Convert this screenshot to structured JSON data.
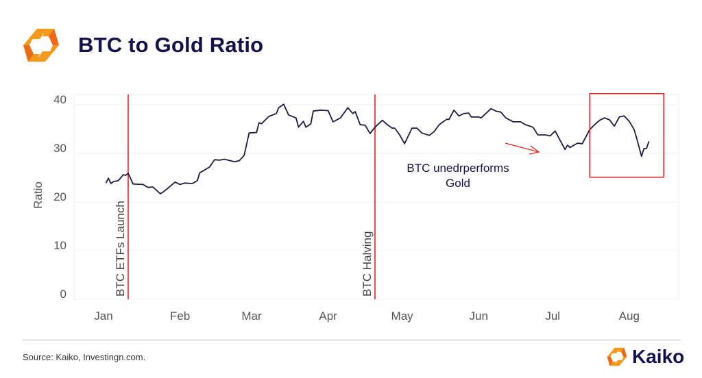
{
  "header": {
    "title": "BTC to Gold Ratio",
    "logo": "kaiko-hex-logo"
  },
  "footer": {
    "source": "Source: Kaiko, Investingn.com.",
    "brand": "Kaiko"
  },
  "colors": {
    "line": "#1b1b3f",
    "event": "#e02424",
    "title": "#13134a",
    "logo_orange": "#f39a1e",
    "logo_dark_orange": "#ec6a1a"
  },
  "chart_data": {
    "type": "line",
    "title": "BTC to Gold Ratio",
    "xlabel": "",
    "ylabel": "Ratio",
    "ylim": [
      0,
      42
    ],
    "xlim": [
      "2024-01-01",
      "2024-08-15"
    ],
    "yticks": [
      0,
      10,
      20,
      30,
      40
    ],
    "xticks": [
      {
        "date": "2024-01-01",
        "label": "Jan"
      },
      {
        "date": "2024-02-01",
        "label": "Feb"
      },
      {
        "date": "2024-03-01",
        "label": "Mar"
      },
      {
        "date": "2024-04-01",
        "label": "Apr"
      },
      {
        "date": "2024-05-01",
        "label": "May"
      },
      {
        "date": "2024-06-01",
        "label": "Jun"
      },
      {
        "date": "2024-07-01",
        "label": "Jul"
      },
      {
        "date": "2024-08-01",
        "label": "Aug"
      }
    ],
    "grid": true,
    "legend": "none",
    "series": [
      {
        "x": [
          "2024-01-02",
          "2024-01-03",
          "2024-01-04",
          "2024-01-05",
          "2024-01-07",
          "2024-01-09",
          "2024-01-10",
          "2024-01-11",
          "2024-01-13",
          "2024-01-17",
          "2024-01-19",
          "2024-01-21",
          "2024-01-24",
          "2024-01-25",
          "2024-01-27",
          "2024-01-30",
          "2024-02-01",
          "2024-02-03",
          "2024-02-06",
          "2024-02-08",
          "2024-02-09",
          "2024-02-13",
          "2024-02-15",
          "2024-02-17",
          "2024-02-19",
          "2024-02-23",
          "2024-02-25",
          "2024-02-27",
          "2024-02-29",
          "2024-03-03",
          "2024-03-04",
          "2024-03-05",
          "2024-03-08",
          "2024-03-11",
          "2024-03-12",
          "2024-03-14",
          "2024-03-16",
          "2024-03-19",
          "2024-03-20",
          "2024-03-22",
          "2024-03-23",
          "2024-03-25",
          "2024-03-26",
          "2024-03-29",
          "2024-04-01",
          "2024-04-03",
          "2024-04-06",
          "2024-04-09",
          "2024-04-11",
          "2024-04-12",
          "2024-04-14",
          "2024-04-16",
          "2024-04-18",
          "2024-04-20",
          "2024-04-23",
          "2024-04-25",
          "2024-04-27",
          "2024-04-28",
          "2024-04-30",
          "2024-05-02",
          "2024-05-05",
          "2024-05-07",
          "2024-05-09",
          "2024-05-12",
          "2024-05-14",
          "2024-05-16",
          "2024-05-19",
          "2024-05-20",
          "2024-05-22",
          "2024-05-24",
          "2024-05-26",
          "2024-05-28",
          "2024-05-29",
          "2024-06-01",
          "2024-06-02",
          "2024-06-06",
          "2024-06-08",
          "2024-06-10",
          "2024-06-12",
          "2024-06-15",
          "2024-06-18",
          "2024-06-20",
          "2024-06-23",
          "2024-06-25",
          "2024-06-28",
          "2024-06-30",
          "2024-07-02",
          "2024-07-04",
          "2024-07-06",
          "2024-07-07",
          "2024-07-08",
          "2024-07-11",
          "2024-07-13",
          "2024-07-16",
          "2024-07-18",
          "2024-07-20",
          "2024-07-22",
          "2024-07-24",
          "2024-07-26",
          "2024-07-28",
          "2024-07-30",
          "2024-08-01",
          "2024-08-03",
          "2024-08-04",
          "2024-08-06",
          "2024-08-07",
          "2024-08-08",
          "2024-08-09"
        ],
        "y": [
          23.9,
          24.9,
          23.8,
          24.2,
          24.4,
          25.6,
          25.5,
          25.9,
          23.7,
          23.6,
          23.0,
          23.1,
          21.7,
          22.0,
          22.8,
          24.1,
          23.6,
          23.9,
          23.8,
          24.4,
          26.0,
          27.2,
          28.7,
          28.6,
          28.8,
          28.3,
          28.5,
          29.6,
          34.2,
          34.3,
          36.3,
          36.1,
          37.6,
          38.2,
          39.4,
          40.1,
          37.9,
          37.3,
          35.4,
          36.6,
          35.4,
          36.1,
          38.7,
          38.9,
          38.8,
          36.5,
          37.3,
          39.4,
          38.2,
          38.6,
          35.9,
          35.8,
          34.1,
          35.4,
          36.8,
          35.9,
          35.2,
          35.2,
          33.8,
          32.0,
          35.2,
          35.2,
          34.2,
          33.7,
          34.5,
          35.9,
          37.0,
          37.0,
          38.9,
          37.7,
          38.2,
          38.3,
          37.5,
          37.5,
          37.3,
          39.2,
          38.7,
          38.5,
          37.3,
          36.5,
          36.5,
          35.9,
          35.4,
          33.8,
          33.8,
          33.6,
          34.6,
          32.7,
          30.8,
          31.7,
          31.2,
          32.1,
          32.0,
          34.9,
          35.9,
          36.8,
          37.3,
          36.9,
          35.6,
          37.5,
          37.7,
          36.6,
          34.9,
          33.2,
          29.4,
          31.0,
          31.0,
          32.5
        ]
      }
    ],
    "events": [
      {
        "date": "2024-01-11",
        "label": "BTC ETFs Launch"
      },
      {
        "date": "2024-04-20",
        "label": "BTC Halving"
      }
    ],
    "annotations": [
      {
        "text": "BTC unedrperforms",
        "text2": "Gold"
      }
    ],
    "highlight_box": {
      "x": [
        "2024-07-16",
        "2024-08-15"
      ],
      "y": [
        25.1,
        42.3
      ]
    }
  }
}
